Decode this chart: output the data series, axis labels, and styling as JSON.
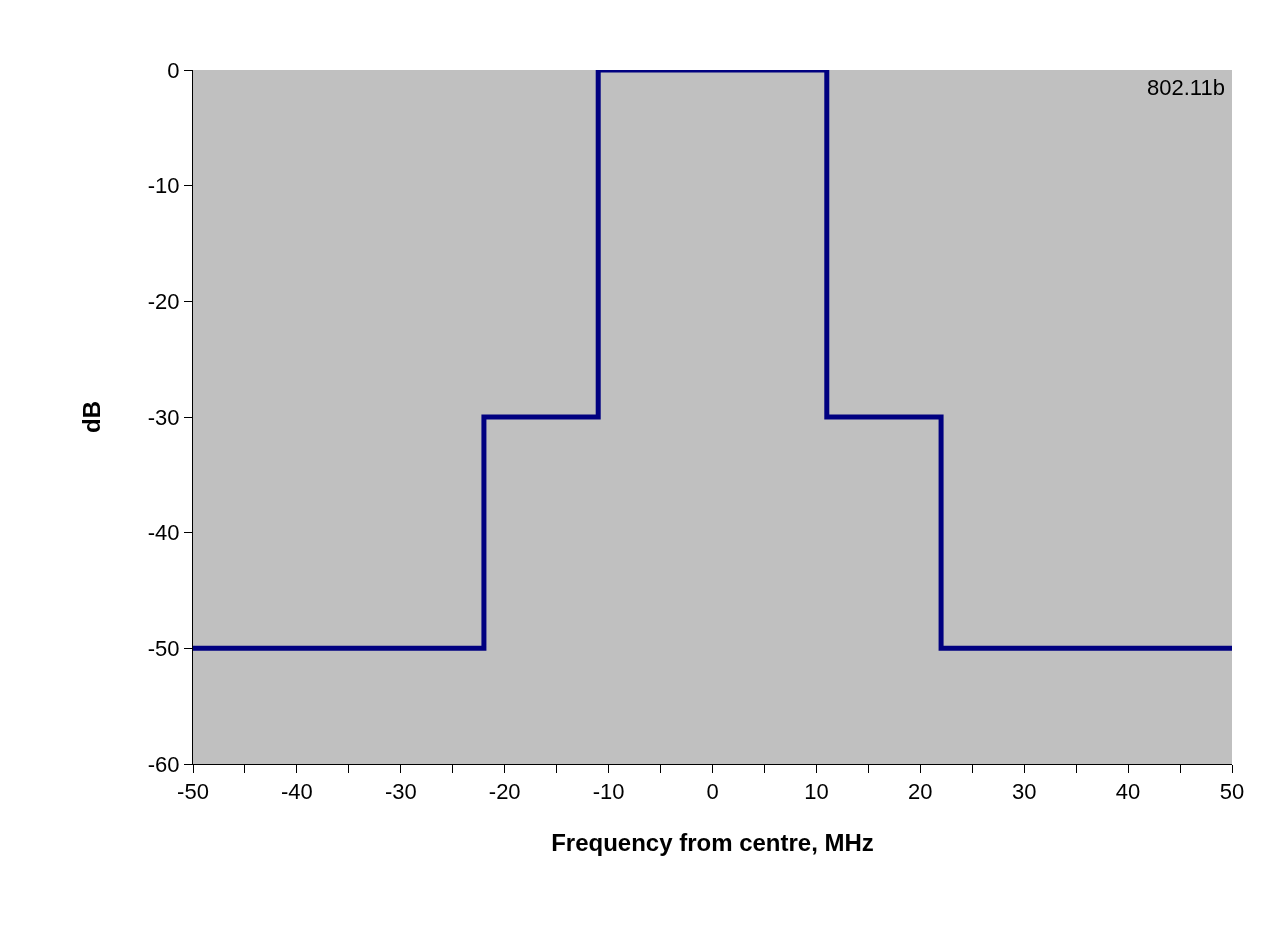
{
  "chart_data": {
    "type": "line",
    "xlabel": "Frequency from centre, MHz",
    "ylabel": "dB",
    "x": [
      -50,
      -22,
      -22,
      -11,
      -11,
      11,
      11,
      22,
      22,
      50
    ],
    "series": [
      {
        "color": "#000080",
        "values": [
          -50,
          -50,
          -30,
          -30,
          0,
          0,
          -30,
          -30,
          -50,
          -50
        ]
      }
    ],
    "xlim": [
      -50,
      50
    ],
    "xticks": [
      -50,
      {
        "value": -45,
        "label": null
      },
      -40,
      {
        "value": -35,
        "label": null
      },
      -30,
      {
        "value": -25,
        "label": null
      },
      -20,
      {
        "value": -15,
        "label": null
      },
      -10,
      {
        "value": -5,
        "label": null
      },
      0,
      {
        "value": 5,
        "label": null
      },
      10,
      {
        "value": 15,
        "label": null
      },
      20,
      {
        "value": 25,
        "label": null
      },
      30,
      {
        "value": 35,
        "label": null
      },
      40,
      {
        "value": 45,
        "label": null
      },
      50
    ],
    "ylim": [
      -60,
      0
    ],
    "yticks": [
      -60,
      -50,
      -40,
      -30,
      -20,
      -10,
      0
    ],
    "grid": false,
    "marker": "none",
    "line_style": "solid",
    "annotations": [
      "802.11b"
    ]
  }
}
